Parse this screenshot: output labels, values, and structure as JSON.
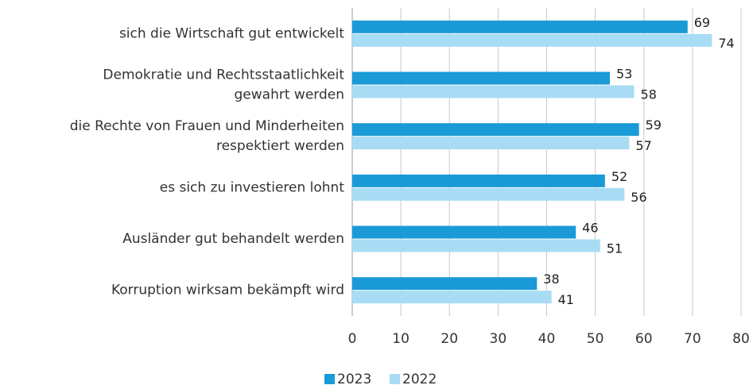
{
  "chart_data": {
    "type": "bar",
    "orientation": "horizontal",
    "categories": [
      [
        "sich die Wirtschaft gut entwickelt"
      ],
      [
        "Demokratie und Rechtsstaatlichkeit",
        "gewahrt werden"
      ],
      [
        "die Rechte von Frauen und Minderheiten",
        "respektiert werden"
      ],
      [
        "es sich zu investieren lohnt"
      ],
      [
        "Ausländer gut behandelt werden"
      ],
      [
        "Korruption wirksam bekämpft wird"
      ]
    ],
    "series": [
      {
        "name": "2023",
        "color": "#1a9ad6",
        "values": [
          69,
          53,
          59,
          52,
          46,
          38
        ]
      },
      {
        "name": "2022",
        "color": "#a8dcf5",
        "values": [
          74,
          58,
          57,
          56,
          51,
          41
        ]
      }
    ],
    "xlim": [
      0,
      80
    ],
    "xticks": [
      0,
      10,
      20,
      30,
      40,
      50,
      60,
      70,
      80
    ],
    "grid": true,
    "legend": "bottom"
  }
}
